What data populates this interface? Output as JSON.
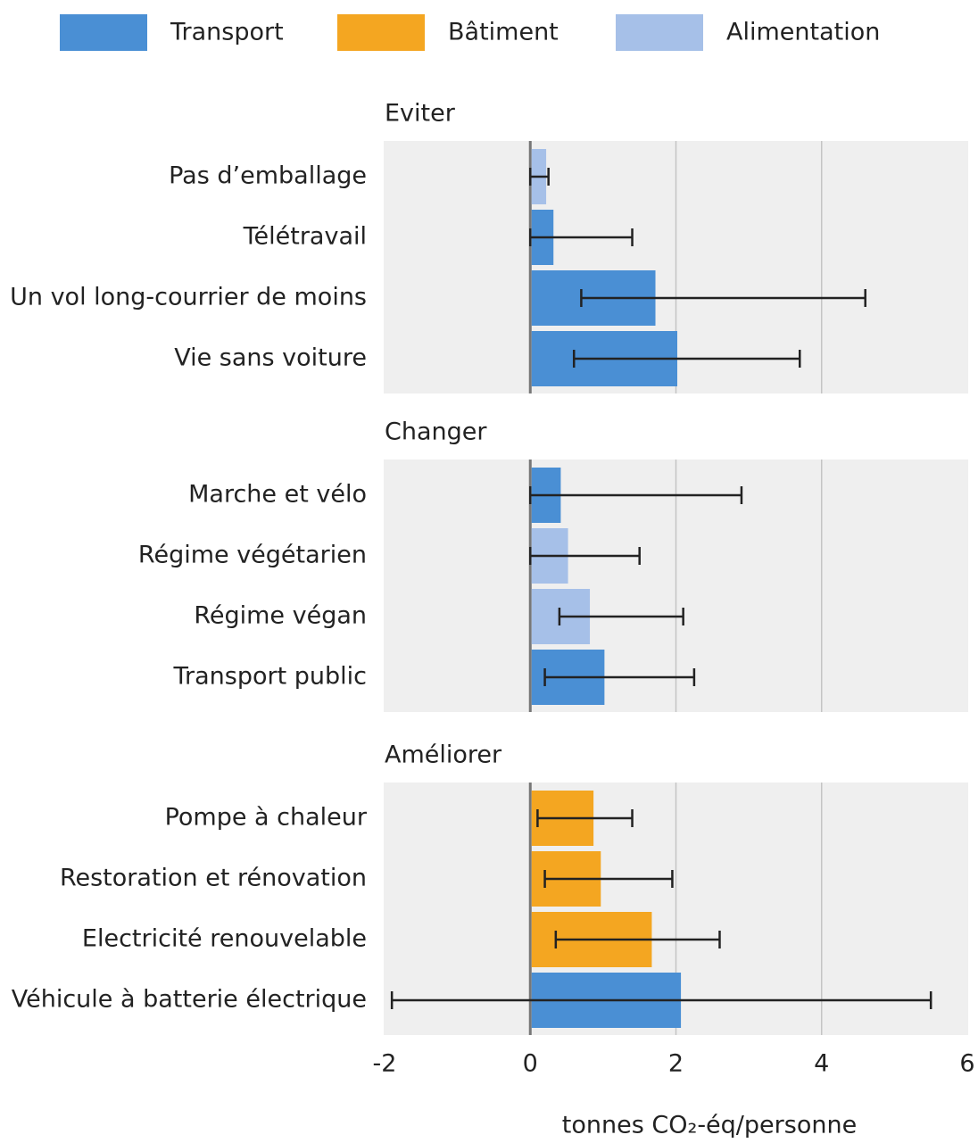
{
  "chart_data": {
    "type": "bar",
    "legend": [
      {
        "name": "Transport",
        "color": "#4a8fd4"
      },
      {
        "name": "Bâtiment",
        "color": "#f4a621"
      },
      {
        "name": "Alimentation",
        "color": "#a6c0e8"
      }
    ],
    "xlim": [
      -2,
      6
    ],
    "xticks": [
      -2,
      0,
      2,
      4,
      6
    ],
    "xlabel": "tonnes CO₂-éq/personne",
    "grid": true,
    "panels": [
      {
        "title": "Eviter",
        "categories": [
          "Pas d’emballage",
          "Télétravail",
          "Un vol long-courrier de moins",
          "Vie sans voiture"
        ],
        "values": [
          0.2,
          0.3,
          1.7,
          2.0
        ],
        "colors": [
          "#a6c0e8",
          "#4a8fd4",
          "#4a8fd4",
          "#4a8fd4"
        ],
        "error_low": [
          0,
          0,
          0.7,
          0.6
        ],
        "error_high": [
          0.25,
          1.4,
          4.6,
          3.7
        ]
      },
      {
        "title": "Changer",
        "categories": [
          "Marche et vélo",
          "Régime végétarien",
          "Régime végan",
          "Transport public"
        ],
        "values": [
          0.4,
          0.5,
          0.8,
          1.0
        ],
        "colors": [
          "#4a8fd4",
          "#a6c0e8",
          "#a6c0e8",
          "#4a8fd4"
        ],
        "error_low": [
          0,
          0,
          0.4,
          0.2
        ],
        "error_high": [
          2.9,
          1.5,
          2.1,
          2.25
        ]
      },
      {
        "title": "Améliorer",
        "categories": [
          "Pompe à chaleur",
          "Restoration et rénovation",
          "Electricité renouvelable",
          "Véhicule à batterie électrique"
        ],
        "values": [
          0.85,
          0.95,
          1.65,
          2.05
        ],
        "colors": [
          "#f4a621",
          "#f4a621",
          "#f4a621",
          "#4a8fd4"
        ],
        "error_low": [
          0.1,
          0.2,
          0.35,
          -1.9
        ],
        "error_high": [
          1.4,
          1.95,
          2.6,
          5.5
        ]
      }
    ]
  }
}
